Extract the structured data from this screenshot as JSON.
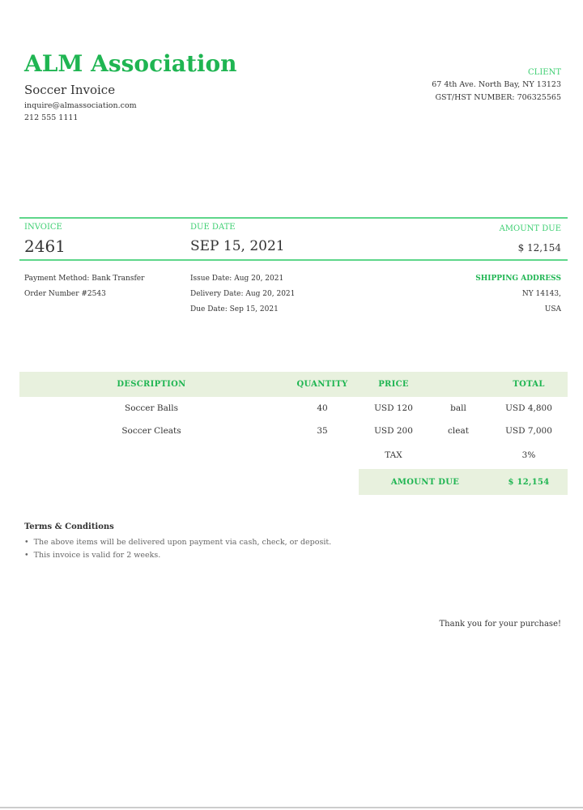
{
  "company": {
    "name": "ALM Association",
    "subtitle": "Soccer Invoice",
    "email": "inquire@almassociation.com",
    "phone": "212 555 1111"
  },
  "client": {
    "label": "CLIENT",
    "address": "67 4th Ave. North Bay, NY 13123",
    "gst": "GST/HST NUMBER: 706325565"
  },
  "summary": {
    "invoice_label": "INVOICE",
    "invoice_number": "2461",
    "due_date_label": "DUE DATE",
    "due_date": "SEP 15, 2021",
    "amount_due_label": "AMOUNT DUE",
    "amount_due": "$ 12,154"
  },
  "details": {
    "payment_method": "Payment Method: Bank Transfer",
    "order_number": "Order Number #2543",
    "issue_date": "Issue Date: Aug 20, 2021",
    "delivery_date": "Delivery Date: Aug 20, 2021",
    "due_date": "Due Date: Sep 15, 2021",
    "shipping_label": "SHIPPING ADDRESS",
    "shipping_line1": "NY 14143,",
    "shipping_line2": "USA"
  },
  "table": {
    "headers": {
      "description": "DESCRIPTION",
      "quantity": "QUANTITY",
      "price": "PRICE",
      "total": "TOTAL"
    },
    "rows": [
      {
        "description": "Soccer Balls",
        "quantity": "40",
        "price": "USD 120",
        "unit": "ball",
        "total": "USD 4,800"
      },
      {
        "description": "Soccer Cleats",
        "quantity": "35",
        "price": "USD 200",
        "unit": "cleat",
        "total": "USD 7,000"
      }
    ],
    "tax_label": "TAX",
    "tax_value": "3%",
    "amount_due_label": "AMOUNT DUE",
    "amount_due_value": "$ 12,154"
  },
  "terms": {
    "title": "Terms & Conditions",
    "items": [
      "The above items will be delivered upon payment via cash, check, or deposit.",
      "This invoice is valid for 2 weeks."
    ]
  },
  "footer": {
    "thanks": "Thank you for your purchase!"
  },
  "colors": {
    "accent": "#1fb552",
    "rule": "#5ed68a",
    "band": "#e8f1de"
  }
}
